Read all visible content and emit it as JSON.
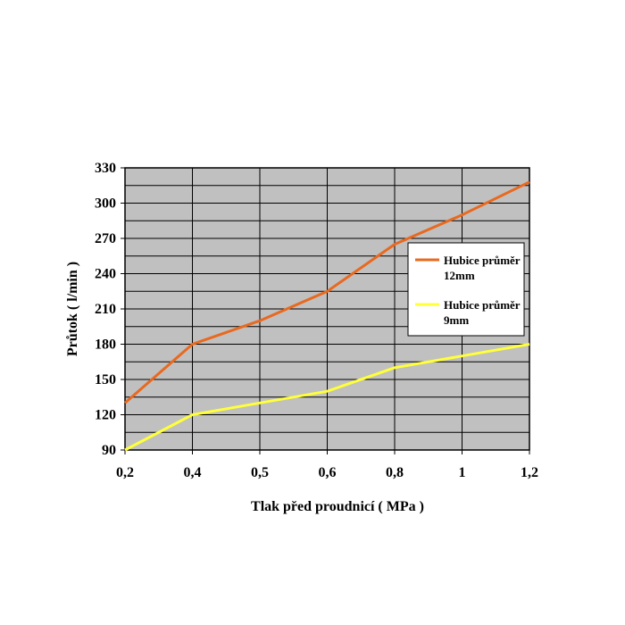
{
  "chart_data": {
    "type": "line",
    "categories": [
      "0,2",
      "0,4",
      "0,5",
      "0,6",
      "0,8",
      "1",
      "1,2"
    ],
    "ylim": [
      90,
      330
    ],
    "yticks": [
      90,
      120,
      150,
      180,
      210,
      240,
      270,
      300,
      330
    ],
    "grid": true,
    "plot_background": "#c0c0c0",
    "xlabel": "Tlak před proudnicí ( MPa )",
    "ylabel": "Průtok  ( l/min )",
    "legend_position": "right",
    "series": [
      {
        "name": "Hubice průměr 12mm",
        "name_lines": [
          "Hubice průměr",
          "12mm"
        ],
        "color": "#e8691f",
        "values": [
          130,
          180,
          200,
          225,
          265,
          290,
          318
        ]
      },
      {
        "name": "Hubice průměr 9mm",
        "name_lines": [
          "Hubice průměr",
          "9mm"
        ],
        "color": "#ffff3a",
        "values": [
          90,
          120,
          130,
          140,
          160,
          170,
          180
        ]
      }
    ]
  }
}
